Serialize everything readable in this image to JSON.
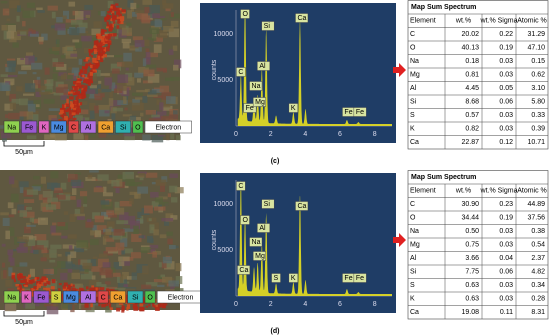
{
  "panels": [
    {
      "label": "(c)",
      "scale_bar": "50μm",
      "map_legend": [
        {
          "text": "Na",
          "color": "#8fd14f"
        },
        {
          "text": "Fe",
          "color": "#9b59d0"
        },
        {
          "text": "K",
          "color": "#e066c0"
        },
        {
          "text": "Mg",
          "color": "#4a8be0"
        },
        {
          "text": "C",
          "color": "#e04848"
        },
        {
          "text": "Al",
          "color": "#b070e0"
        },
        {
          "text": "Ca",
          "color": "#f0a030"
        },
        {
          "text": "Si",
          "color": "#30b0b0"
        },
        {
          "text": "O",
          "color": "#50c050"
        },
        {
          "text": "Electron",
          "color": "#ffffff"
        }
      ],
      "spectrum": {
        "y_axis_label": "counts",
        "x_ticks": [
          "0",
          "2",
          "4",
          "6",
          "8"
        ],
        "y_ticks": [
          "5000",
          "10000"
        ],
        "peak_labels": [
          "O",
          "C",
          "Na",
          "Fe",
          "Mg",
          "Al",
          "Si",
          "K",
          "Ca",
          "Fe",
          "Fe"
        ]
      },
      "table": {
        "title": "Map Sum Spectrum",
        "header": [
          "Element",
          "wt.%",
          "wt.% Sigma",
          "Atomic %"
        ],
        "rows": [
          [
            "C",
            "20.02",
            "0.22",
            "31.29"
          ],
          [
            "O",
            "40.13",
            "0.19",
            "47.10"
          ],
          [
            "Na",
            "0.18",
            "0.03",
            "0.15"
          ],
          [
            "Mg",
            "0.81",
            "0.03",
            "0.62"
          ],
          [
            "Al",
            "4.45",
            "0.05",
            "3.10"
          ],
          [
            "Si",
            "8.68",
            "0.06",
            "5.80"
          ],
          [
            "S",
            "0.57",
            "0.03",
            "0.33"
          ],
          [
            "K",
            "0.82",
            "0.03",
            "0.39"
          ],
          [
            "Ca",
            "22.87",
            "0.12",
            "10.71"
          ]
        ]
      }
    },
    {
      "label": "(d)",
      "scale_bar": "50μm",
      "map_legend": [
        {
          "text": "Na",
          "color": "#8fd14f"
        },
        {
          "text": "K",
          "color": "#e066c0"
        },
        {
          "text": "Fe",
          "color": "#9b59d0"
        },
        {
          "text": "S",
          "color": "#d0d040"
        },
        {
          "text": "Mg",
          "color": "#4a8be0"
        },
        {
          "text": "Al",
          "color": "#b070e0"
        },
        {
          "text": "C",
          "color": "#e04848"
        },
        {
          "text": "Ca",
          "color": "#f0a030"
        },
        {
          "text": "Si",
          "color": "#30b0b0"
        },
        {
          "text": "O",
          "color": "#50c050"
        },
        {
          "text": "Electron",
          "color": "#ffffff"
        }
      ],
      "spectrum": {
        "y_axis_label": "counts",
        "x_ticks": [
          "0",
          "2",
          "4",
          "6",
          "8"
        ],
        "y_ticks": [
          "5000",
          "10000"
        ],
        "peak_labels": [
          "C",
          "O",
          "Ca",
          "Na",
          "Mg",
          "Al",
          "Si",
          "S",
          "K",
          "Ca",
          "Fe",
          "Fe"
        ]
      },
      "table": {
        "title": "Map Sum Spectrum",
        "header": [
          "Element",
          "wt.%",
          "wt.% Sigma",
          "Atomic %"
        ],
        "rows": [
          [
            "C",
            "30.90",
            "0.23",
            "44.89"
          ],
          [
            "O",
            "34.44",
            "0.19",
            "37.56"
          ],
          [
            "Na",
            "0.50",
            "0.03",
            "0.38"
          ],
          [
            "Mg",
            "0.75",
            "0.03",
            "0.54"
          ],
          [
            "Al",
            "3.66",
            "0.04",
            "2.37"
          ],
          [
            "Si",
            "7.75",
            "0.06",
            "4.82"
          ],
          [
            "S",
            "0.63",
            "0.03",
            "0.34"
          ],
          [
            "K",
            "0.63",
            "0.03",
            "0.28"
          ],
          [
            "Ca",
            "19.08",
            "0.11",
            "8.31"
          ]
        ]
      }
    }
  ]
}
